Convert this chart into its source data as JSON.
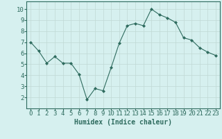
{
  "x": [
    0,
    1,
    2,
    3,
    4,
    5,
    6,
    7,
    8,
    9,
    10,
    11,
    12,
    13,
    14,
    15,
    16,
    17,
    18,
    19,
    20,
    21,
    22,
    23
  ],
  "y": [
    7.0,
    6.2,
    5.1,
    5.7,
    5.1,
    5.1,
    4.1,
    1.8,
    2.8,
    2.6,
    4.7,
    6.9,
    8.5,
    8.7,
    8.5,
    10.0,
    9.5,
    9.2,
    8.8,
    7.4,
    7.2,
    6.5,
    6.1,
    5.8
  ],
  "line_color": "#2e6b5e",
  "marker": "D",
  "marker_size": 2,
  "bg_color": "#d6f0ef",
  "grid_color": "#c0d8d4",
  "xlabel": "Humidex (Indice chaleur)",
  "ylabel": "",
  "xlim": [
    -0.5,
    23.5
  ],
  "ylim": [
    1.0,
    10.7
  ],
  "yticks": [
    2,
    3,
    4,
    5,
    6,
    7,
    8,
    9,
    10
  ],
  "xticks": [
    0,
    1,
    2,
    3,
    4,
    5,
    6,
    7,
    8,
    9,
    10,
    11,
    12,
    13,
    14,
    15,
    16,
    17,
    18,
    19,
    20,
    21,
    22,
    23
  ],
  "tick_color": "#2e6b5e",
  "label_color": "#2e6b5e",
  "spine_color": "#2e6b5e",
  "xlabel_fontsize": 7,
  "tick_fontsize": 6.5
}
